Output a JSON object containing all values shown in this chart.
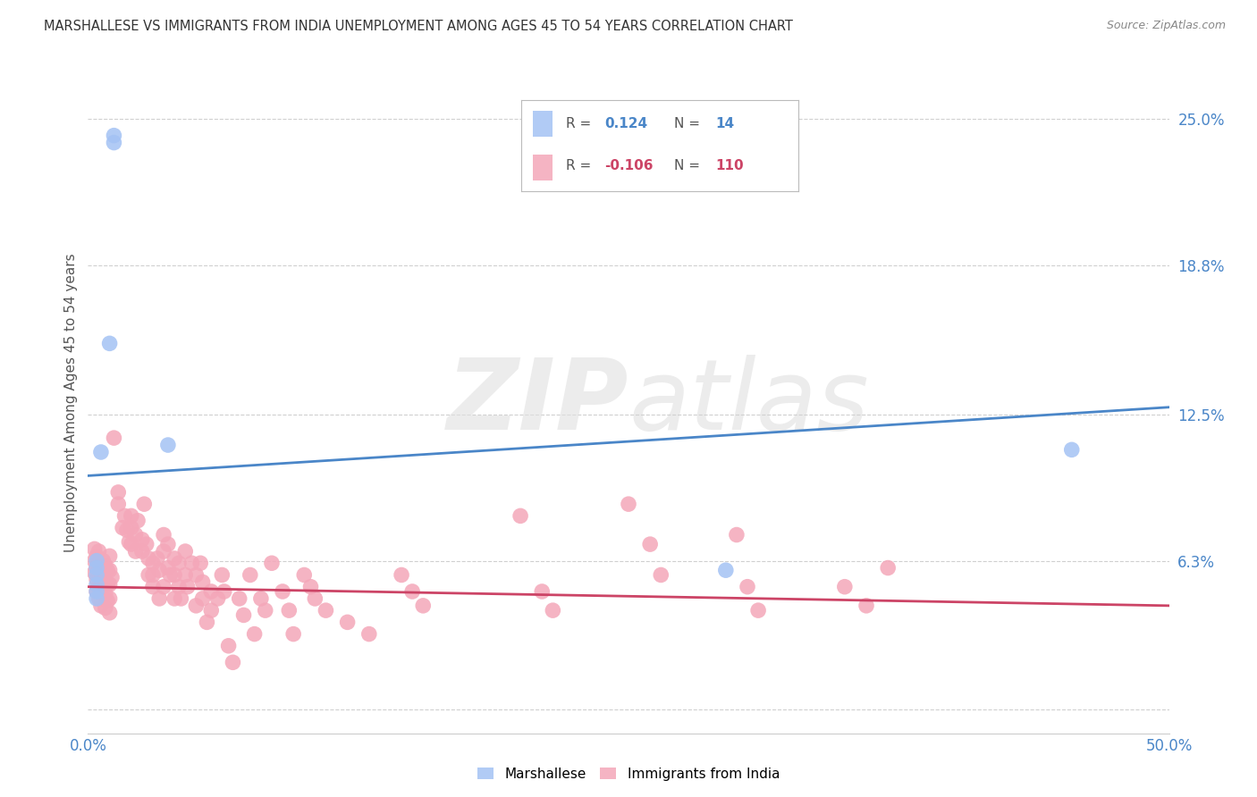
{
  "title": "MARSHALLESE VS IMMIGRANTS FROM INDIA UNEMPLOYMENT AMONG AGES 45 TO 54 YEARS CORRELATION CHART",
  "source": "Source: ZipAtlas.com",
  "ylabel": "Unemployment Among Ages 45 to 54 years",
  "xlim": [
    0.0,
    0.5
  ],
  "ylim": [
    -0.01,
    0.27
  ],
  "ytick_positions": [
    0.0,
    0.063,
    0.125,
    0.188,
    0.25
  ],
  "yticklabels_right": [
    "",
    "6.3%",
    "12.5%",
    "18.8%",
    "25.0%"
  ],
  "blue_R": "0.124",
  "blue_N": "14",
  "pink_R": "-0.106",
  "pink_N": "110",
  "blue_color": "#a4c2f4",
  "pink_color": "#f4a7b9",
  "blue_line_color": "#4a86c8",
  "pink_line_color": "#cc4466",
  "watermark_zip": "ZIP",
  "watermark_atlas": "atlas",
  "blue_points": [
    [
      0.004,
      0.063
    ],
    [
      0.004,
      0.06
    ],
    [
      0.004,
      0.057
    ],
    [
      0.004,
      0.053
    ],
    [
      0.004,
      0.05
    ],
    [
      0.004,
      0.047
    ],
    [
      0.006,
      0.109
    ],
    [
      0.01,
      0.155
    ],
    [
      0.012,
      0.243
    ],
    [
      0.012,
      0.24
    ],
    [
      0.037,
      0.112
    ],
    [
      0.295,
      0.059
    ],
    [
      0.455,
      0.11
    ]
  ],
  "blue_line": [
    [
      0.0,
      0.099
    ],
    [
      0.5,
      0.128
    ]
  ],
  "pink_points": [
    [
      0.003,
      0.068
    ],
    [
      0.003,
      0.063
    ],
    [
      0.003,
      0.058
    ],
    [
      0.004,
      0.065
    ],
    [
      0.004,
      0.06
    ],
    [
      0.004,
      0.055
    ],
    [
      0.004,
      0.05
    ],
    [
      0.005,
      0.067
    ],
    [
      0.005,
      0.062
    ],
    [
      0.005,
      0.057
    ],
    [
      0.005,
      0.052
    ],
    [
      0.005,
      0.047
    ],
    [
      0.006,
      0.06
    ],
    [
      0.006,
      0.055
    ],
    [
      0.006,
      0.05
    ],
    [
      0.006,
      0.044
    ],
    [
      0.007,
      0.063
    ],
    [
      0.007,
      0.058
    ],
    [
      0.007,
      0.052
    ],
    [
      0.008,
      0.061
    ],
    [
      0.008,
      0.055
    ],
    [
      0.008,
      0.049
    ],
    [
      0.008,
      0.043
    ],
    [
      0.009,
      0.059
    ],
    [
      0.009,
      0.053
    ],
    [
      0.009,
      0.046
    ],
    [
      0.01,
      0.065
    ],
    [
      0.01,
      0.059
    ],
    [
      0.01,
      0.053
    ],
    [
      0.01,
      0.047
    ],
    [
      0.01,
      0.041
    ],
    [
      0.011,
      0.056
    ],
    [
      0.012,
      0.115
    ],
    [
      0.014,
      0.092
    ],
    [
      0.014,
      0.087
    ],
    [
      0.016,
      0.077
    ],
    [
      0.017,
      0.082
    ],
    [
      0.018,
      0.076
    ],
    [
      0.019,
      0.071
    ],
    [
      0.02,
      0.082
    ],
    [
      0.02,
      0.077
    ],
    [
      0.02,
      0.07
    ],
    [
      0.022,
      0.074
    ],
    [
      0.022,
      0.067
    ],
    [
      0.023,
      0.08
    ],
    [
      0.025,
      0.072
    ],
    [
      0.025,
      0.067
    ],
    [
      0.026,
      0.087
    ],
    [
      0.027,
      0.07
    ],
    [
      0.028,
      0.064
    ],
    [
      0.028,
      0.057
    ],
    [
      0.03,
      0.062
    ],
    [
      0.03,
      0.057
    ],
    [
      0.03,
      0.052
    ],
    [
      0.032,
      0.064
    ],
    [
      0.033,
      0.059
    ],
    [
      0.033,
      0.047
    ],
    [
      0.035,
      0.074
    ],
    [
      0.035,
      0.067
    ],
    [
      0.035,
      0.052
    ],
    [
      0.037,
      0.07
    ],
    [
      0.037,
      0.06
    ],
    [
      0.038,
      0.057
    ],
    [
      0.04,
      0.064
    ],
    [
      0.04,
      0.057
    ],
    [
      0.04,
      0.047
    ],
    [
      0.042,
      0.062
    ],
    [
      0.042,
      0.052
    ],
    [
      0.043,
      0.047
    ],
    [
      0.045,
      0.067
    ],
    [
      0.045,
      0.057
    ],
    [
      0.046,
      0.052
    ],
    [
      0.048,
      0.062
    ],
    [
      0.05,
      0.057
    ],
    [
      0.05,
      0.044
    ],
    [
      0.052,
      0.062
    ],
    [
      0.053,
      0.054
    ],
    [
      0.053,
      0.047
    ],
    [
      0.055,
      0.037
    ],
    [
      0.057,
      0.05
    ],
    [
      0.057,
      0.042
    ],
    [
      0.06,
      0.047
    ],
    [
      0.062,
      0.057
    ],
    [
      0.063,
      0.05
    ],
    [
      0.065,
      0.027
    ],
    [
      0.067,
      0.02
    ],
    [
      0.07,
      0.047
    ],
    [
      0.072,
      0.04
    ],
    [
      0.075,
      0.057
    ],
    [
      0.077,
      0.032
    ],
    [
      0.08,
      0.047
    ],
    [
      0.082,
      0.042
    ],
    [
      0.085,
      0.062
    ],
    [
      0.09,
      0.05
    ],
    [
      0.093,
      0.042
    ],
    [
      0.095,
      0.032
    ],
    [
      0.1,
      0.057
    ],
    [
      0.103,
      0.052
    ],
    [
      0.105,
      0.047
    ],
    [
      0.11,
      0.042
    ],
    [
      0.12,
      0.037
    ],
    [
      0.13,
      0.032
    ],
    [
      0.145,
      0.057
    ],
    [
      0.15,
      0.05
    ],
    [
      0.155,
      0.044
    ],
    [
      0.2,
      0.082
    ],
    [
      0.21,
      0.05
    ],
    [
      0.215,
      0.042
    ],
    [
      0.25,
      0.087
    ],
    [
      0.26,
      0.07
    ],
    [
      0.265,
      0.057
    ],
    [
      0.3,
      0.074
    ],
    [
      0.305,
      0.052
    ],
    [
      0.31,
      0.042
    ],
    [
      0.35,
      0.052
    ],
    [
      0.36,
      0.044
    ],
    [
      0.37,
      0.06
    ]
  ],
  "pink_line": [
    [
      0.0,
      0.052
    ],
    [
      0.5,
      0.044
    ]
  ]
}
